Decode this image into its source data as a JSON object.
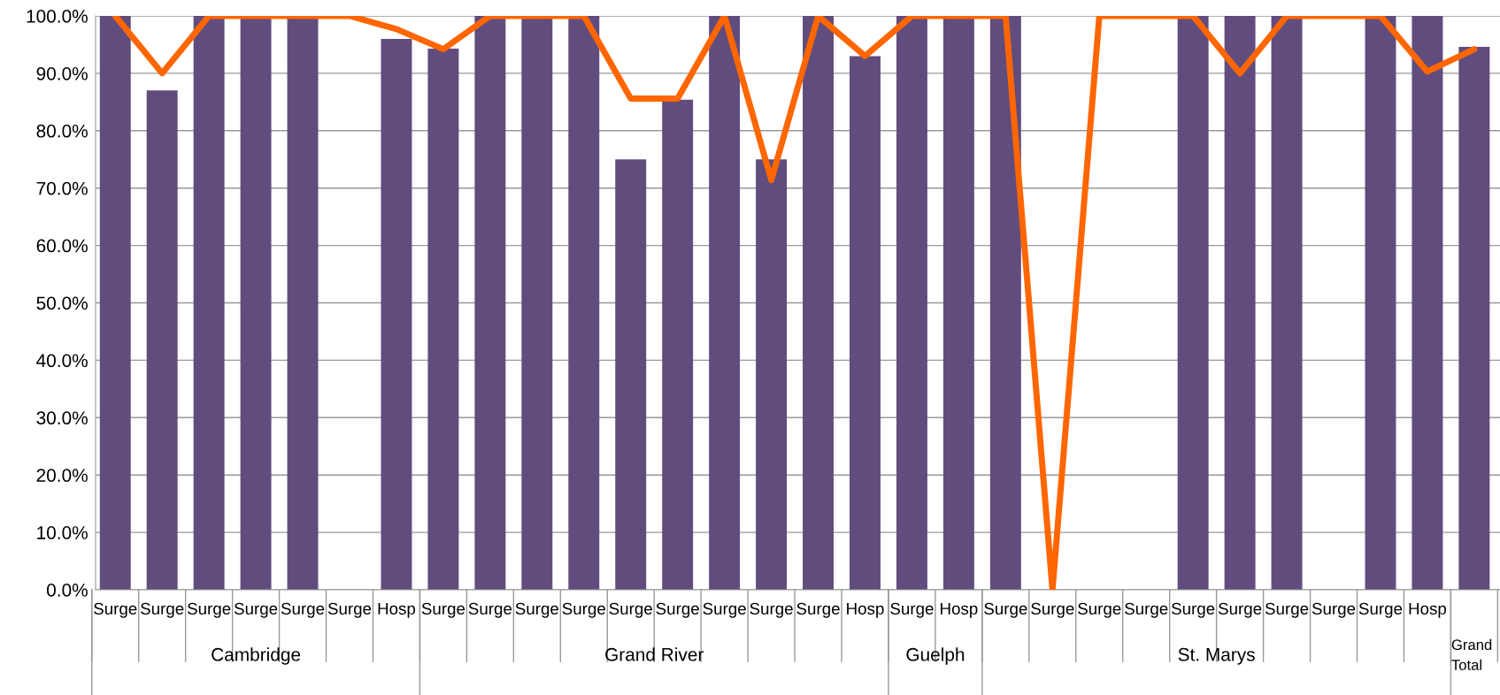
{
  "chart_data": {
    "type": "bar",
    "categories": [
      "Surge",
      "Surge",
      "Surge",
      "Surge",
      "Surge",
      "Surge",
      "Hosp",
      "Surge",
      "Surge",
      "Surge",
      "Surge",
      "Surge",
      "Surge",
      "Surge",
      "Surge",
      "Surge",
      "Hosp",
      "Surge",
      "Hosp",
      "Surge",
      "Surge",
      "Surge",
      "Surge",
      "Surge",
      "Surge",
      "Surge",
      "Surge",
      "Surge",
      "Hosp",
      null
    ],
    "series": [
      {
        "color": "#614c7e",
        "values": [
          100,
          87.0,
          100,
          100,
          100,
          null,
          96.0,
          94.3,
          100,
          100,
          100,
          75.0,
          85.4,
          100,
          75.0,
          100,
          93.0,
          100,
          100,
          100,
          null,
          null,
          null,
          100,
          100,
          100,
          null,
          100,
          100,
          94.6
        ]
      },
      {
        "type": "line",
        "color": "#ff6600",
        "values": [
          100,
          90,
          100,
          100,
          100,
          100,
          97.7,
          94.2,
          100,
          100,
          100,
          85.6,
          85.6,
          100,
          71.4,
          100,
          93.0,
          100,
          100,
          100,
          0,
          100,
          100,
          100,
          90,
          100,
          100,
          100,
          90.3,
          94.2
        ]
      }
    ],
    "annotations": [
      "Cambridge",
      "Grand River",
      "Guelph",
      "St. Marys",
      "Grand Total"
    ],
    "ylim": [
      0,
      100
    ],
    "yticks": [
      {
        "value": 0,
        "label": "0.0%"
      },
      {
        "value": 10,
        "label": "10.0%"
      },
      {
        "value": 20,
        "label": "20.0%"
      },
      {
        "value": 30,
        "label": "30.0%"
      },
      {
        "value": 40,
        "label": "40.0%"
      },
      {
        "value": 50,
        "label": "50.0%"
      },
      {
        "value": 60,
        "label": "60.0%"
      },
      {
        "value": 70,
        "label": "70.0%"
      },
      {
        "value": 80,
        "label": "80.0%"
      },
      {
        "value": 90,
        "label": "90.0%"
      },
      {
        "value": 100,
        "label": "100.0%"
      }
    ],
    "grid": "y",
    "legend": false,
    "marker": "none",
    "line_style": "solid"
  }
}
